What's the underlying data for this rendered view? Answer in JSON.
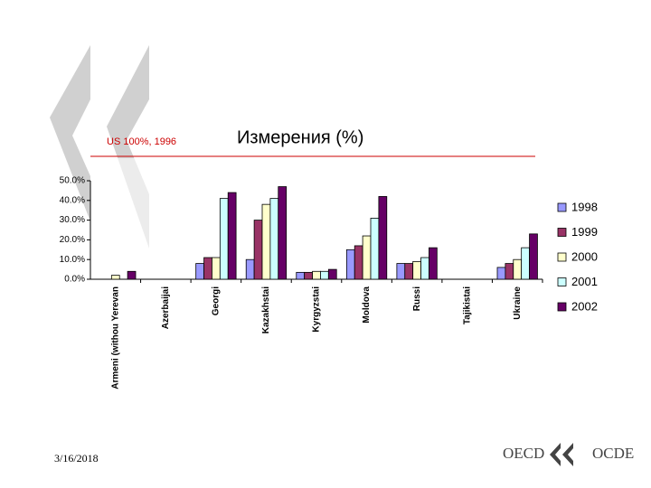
{
  "chart_data": {
    "type": "bar",
    "title": "Измерения (%)",
    "subtitle": "US 100%, 1996",
    "date": "3/16/2018",
    "logo_left": "OECD",
    "logo_right": "OCDE",
    "categories": [
      "Armeni (withou Yerevan",
      "Azerbaijai",
      "Georgi",
      "Kazakhstai",
      "Kyrgyzstai",
      "Moldova",
      "Russi",
      "Tajikistai",
      "Ukraine"
    ],
    "series": [
      {
        "name": "1998",
        "color": "#9999ff",
        "values": [
          null,
          null,
          8,
          10,
          3.5,
          15,
          8,
          null,
          6
        ]
      },
      {
        "name": "1999",
        "color": "#993366",
        "values": [
          null,
          null,
          11,
          30,
          3.5,
          17,
          8,
          null,
          8
        ]
      },
      {
        "name": "2000",
        "color": "#ffffcc",
        "values": [
          2,
          null,
          11,
          38,
          4,
          22,
          9,
          null,
          10
        ]
      },
      {
        "name": "2001",
        "color": "#ccffff",
        "values": [
          null,
          null,
          41,
          41,
          4,
          31,
          11,
          null,
          16
        ]
      },
      {
        "name": "2002",
        "color": "#660066",
        "values": [
          4,
          null,
          44,
          47,
          5,
          42,
          16,
          null,
          23
        ]
      }
    ],
    "ylim": [
      0,
      50
    ],
    "yticks": [
      {
        "value": 0,
        "label": "0.0%"
      },
      {
        "value": 10,
        "label": "10.0%"
      },
      {
        "value": 20,
        "label": "20.0%"
      },
      {
        "value": 30,
        "label": "30.0%"
      },
      {
        "value": 40,
        "label": "40.0%"
      },
      {
        "value": 50,
        "label": "50.0%"
      }
    ],
    "legend": "right"
  }
}
